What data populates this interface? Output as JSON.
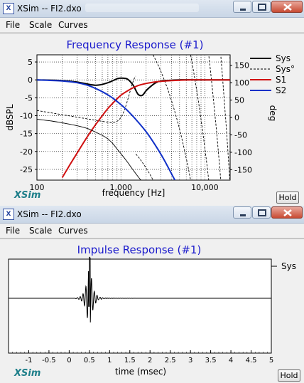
{
  "windows": [
    {
      "title": "XSim -- FI2.dxo",
      "app_icon": "xsim-app-icon",
      "menu": [
        "File",
        "Scale",
        "Curves"
      ],
      "brand": "XSim",
      "hold_label": "Hold"
    },
    {
      "title": "XSim -- FI2.dxo",
      "app_icon": "xsim-app-icon",
      "menu": [
        "File",
        "Scale",
        "Curves"
      ],
      "brand": "XSim",
      "hold_label": "Hold"
    }
  ],
  "chart_data": [
    {
      "type": "line",
      "title": "Frequency Response (#1)",
      "xlabel": "frequency [Hz]",
      "ylabel": "dBSPL",
      "y2label": "deg",
      "x_scale": "log",
      "xlim": [
        100,
        20000
      ],
      "ylim": [
        -28,
        7
      ],
      "y2lim": [
        -180,
        180
      ],
      "x_ticks": [
        {
          "v": 100,
          "label": "100"
        },
        {
          "v": 1000,
          "label": "1,000"
        },
        {
          "v": 10000,
          "label": "10,000"
        }
      ],
      "y_ticks": [
        5,
        0,
        -5,
        -10,
        -15,
        -20,
        -25
      ],
      "y2_ticks": [
        150,
        100,
        50,
        0,
        -50,
        -100,
        -150
      ],
      "grid": true,
      "legend": "right",
      "series": [
        {
          "name": "Sys",
          "color": "#000000",
          "dash": false,
          "axis": "left",
          "x": [
            100,
            200,
            300,
            500,
            700,
            900,
            1000,
            1200,
            1400,
            1600,
            1800,
            2000,
            2300,
            2600,
            3000,
            4000,
            5000,
            8000,
            12000,
            20000
          ],
          "y": [
            0,
            -0.2,
            -0.6,
            -1.5,
            -0.8,
            0.3,
            0.5,
            0.2,
            -1.5,
            -4.0,
            -4.3,
            -3.0,
            -1.7,
            -0.8,
            -0.3,
            -0.1,
            0,
            0,
            0,
            0
          ]
        },
        {
          "name": "Sys°",
          "color": "#000000",
          "dash": true,
          "axis": "right"
        },
        {
          "name": "S1",
          "color": "#d01010",
          "dash": false,
          "axis": "left",
          "x": [
            200,
            250,
            300,
            400,
            500,
            600,
            700,
            800,
            1000,
            1300,
            1600,
            2000,
            2500,
            3000,
            4000,
            5000,
            7000,
            10000,
            20000
          ],
          "y": [
            -27.3,
            -23.5,
            -20.5,
            -15.8,
            -12.5,
            -10.0,
            -8.0,
            -6.5,
            -4.3,
            -2.6,
            -1.6,
            -1.0,
            -0.6,
            -0.4,
            -0.2,
            -0.1,
            0,
            0,
            0
          ]
        },
        {
          "name": "S2",
          "color": "#1030c8",
          "dash": false,
          "axis": "left",
          "x": [
            100,
            200,
            300,
            400,
            500,
            600,
            700,
            800,
            1000,
            1200,
            1500,
            2000,
            2500,
            3000,
            3500,
            4000,
            4500
          ],
          "y": [
            0,
            -0.3,
            -0.8,
            -1.5,
            -2.4,
            -3.3,
            -4.2,
            -5.1,
            -6.9,
            -8.6,
            -11.0,
            -14.5,
            -17.8,
            -20.8,
            -23.6,
            -26.2,
            -28.5
          ]
        },
        {
          "name": "",
          "color": "#000000",
          "dash": false,
          "axis": "left",
          "x": [
            100,
            150,
            200,
            300,
            400,
            500,
            600,
            700,
            800,
            900,
            1000,
            1200,
            1400,
            1600,
            1800,
            2000,
            2200,
            2500
          ],
          "y": [
            -11,
            -11.5,
            -12.0,
            -12.8,
            -13.6,
            -14.6,
            -15.5,
            -16.5,
            -17.8,
            -19.3,
            -20.6,
            -23.0,
            -25.2,
            -27.0,
            -28.5,
            -29.5,
            -30.5,
            -31.5
          ]
        }
      ]
    },
    {
      "type": "line",
      "title": "Impulse Response (#1)",
      "xlabel": "time (msec)",
      "xlim": [
        -1.5,
        5
      ],
      "x_ticks": [
        -1,
        -0.5,
        0,
        0.5,
        1,
        1.5,
        2,
        2.5,
        3,
        3.5,
        4,
        4.5,
        5
      ],
      "legend": "right",
      "series": [
        {
          "name": "Sys",
          "color": "#000000"
        }
      ]
    }
  ]
}
